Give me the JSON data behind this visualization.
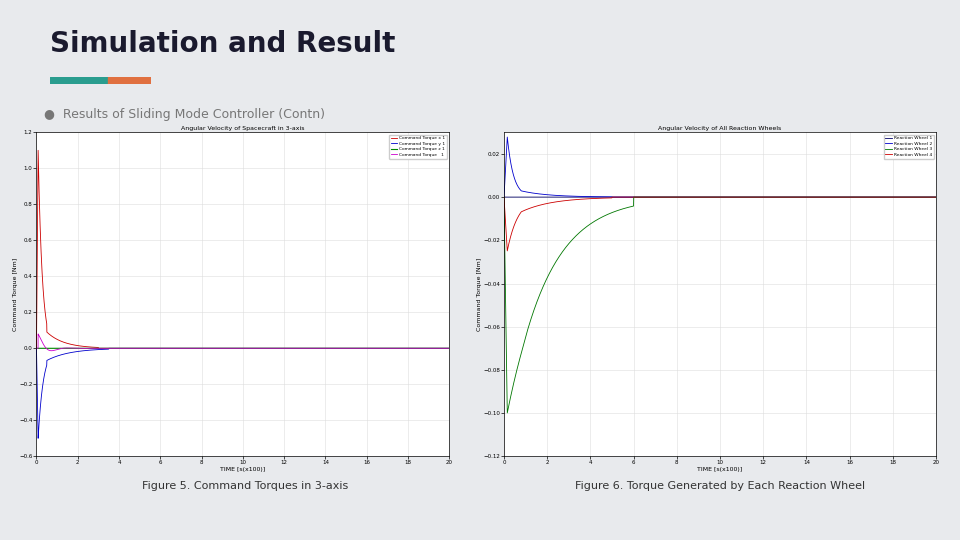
{
  "bg_color": "#e8eaed",
  "title": "Simulation and Result",
  "title_color": "#1a1a2e",
  "subtitle": "Results of Sliding Mode Controller (Contn)",
  "fig5_caption": "Figure 5. Command Torques in 3-axis",
  "fig6_caption": "Figure 6. Torque Generated by Each Reaction Wheel",
  "fig5_title": "Angular Velocity of Spacecraft in 3-axis",
  "fig6_title": "Angular Velocity of All Reaction Wheels",
  "fig5_xlabel": "TIME [s(x100)]",
  "fig6_xlabel": "TIME [s(x100)]",
  "fig5_ylabel": "Command Torque [Nm]",
  "fig6_ylabel": "Command Torque [Nm]",
  "fig5_xlim": [
    0,
    20
  ],
  "fig5_ylim": [
    -0.6,
    1.2
  ],
  "fig6_xlim": [
    0,
    20
  ],
  "fig6_ylim": [
    -0.12,
    0.03
  ],
  "accent_teal": "#2a9d8f",
  "accent_orange": "#e07040",
  "bullet_color": "#777777",
  "fig5_yticks": [
    -0.6,
    -0.4,
    -0.2,
    0.0,
    0.2,
    0.4,
    0.6,
    0.8,
    1.0,
    1.2
  ],
  "fig6_yticks": [
    -0.12,
    -0.1,
    -0.08,
    -0.06,
    -0.04,
    -0.02,
    0.0,
    0.02
  ],
  "fig5_xticks": [
    0,
    2,
    4,
    6,
    8,
    10,
    12,
    14,
    16,
    18,
    20
  ],
  "fig6_xticks": [
    0,
    2,
    4,
    6,
    8,
    10,
    12,
    14,
    16,
    18,
    20
  ],
  "colors_fig5": [
    "#cc0000",
    "#0000cc",
    "#008800",
    "#cc00cc"
  ],
  "colors_fig6": [
    "#000066",
    "#0000cc",
    "#007700",
    "#cc0000"
  ],
  "plot_bg": "#ffffff",
  "grid_color": "#dddddd",
  "title_fontsize": 20,
  "subtitle_fontsize": 9,
  "caption_fontsize": 8,
  "plot_title_fontsize": 4.5,
  "plot_tick_fontsize": 4,
  "plot_label_fontsize": 4.5
}
